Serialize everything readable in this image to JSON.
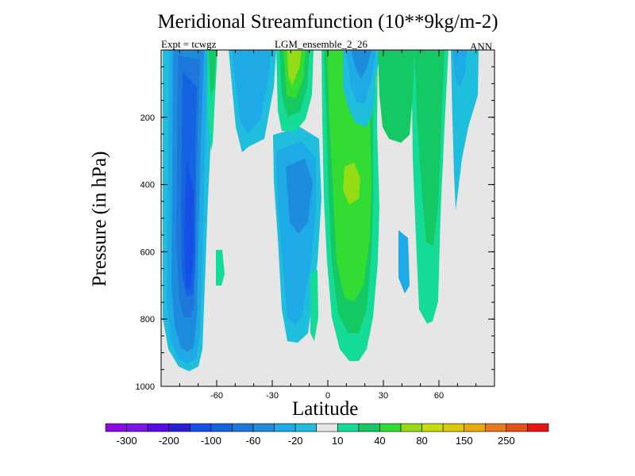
{
  "chart_data": {
    "type": "contour",
    "title": "Meridional Streamfunction (10**9kg/m-2)",
    "left_label": "Expt = tcwgz",
    "center_label": "LGM_ensemble_2_26",
    "right_label": "ANN",
    "xlabel": "Latitude",
    "ylabel": "Pressure (in hPa)",
    "xlim": [
      -90,
      90
    ],
    "ylim": [
      1000,
      0
    ],
    "x_ticks": [
      -60,
      -30,
      0,
      30,
      60
    ],
    "x_tick_labels": [
      "-60",
      "-30",
      "0",
      "30",
      "60"
    ],
    "y_ticks": [
      200,
      400,
      600,
      800,
      1000
    ],
    "y_tick_labels": [
      "200",
      "400",
      "600",
      "800",
      "1000"
    ],
    "background_color": "#e6e6e6",
    "colorbar": {
      "levels": [
        -300,
        -250,
        -200,
        -150,
        -100,
        -80,
        -60,
        -40,
        -20,
        -10,
        10,
        20,
        40,
        60,
        80,
        100,
        150,
        200,
        250,
        300
      ],
      "labels": [
        "-300",
        "-200",
        "-100",
        "-60",
        "-20",
        "10",
        "40",
        "80",
        "150",
        "250"
      ],
      "colors": [
        "#8a0ae6",
        "#7b14e6",
        "#5a0ae6",
        "#2d1ed6",
        "#1450e6",
        "#1464e0",
        "#1e78dc",
        "#1e8cdc",
        "#1eaae6",
        "#1ebedc",
        "#e6e6e6",
        "#14dc96",
        "#14c864",
        "#32dc32",
        "#96dc14",
        "#c8dc0a",
        "#dcc80a",
        "#e6aa0a",
        "#e6781e",
        "#e65014",
        "#e61414"
      ]
    },
    "fields": [
      {
        "name": "SH Hadley/Ferrel cell",
        "lat_range": [
          -85,
          -58
        ],
        "p_range": [
          30,
          960
        ],
        "min_value": -100,
        "sign": "negative"
      },
      {
        "name": "upper trop cell",
        "lat_range": [
          -50,
          -28
        ],
        "p_range": [
          30,
          310
        ],
        "min_value": -20,
        "sign": "negative"
      },
      {
        "name": "SH tropical cell",
        "lat_range": [
          -26,
          -6
        ],
        "p_range": [
          160,
          880
        ],
        "min_value": -40,
        "sign": "negative"
      },
      {
        "name": "stratospheric tropical cell",
        "lat_range": [
          -22,
          -10
        ],
        "p_range": [
          30,
          160
        ],
        "max_value": 60,
        "sign": "positive"
      },
      {
        "name": "NH Hadley cell",
        "lat_range": [
          2,
          28
        ],
        "p_range": [
          30,
          920
        ],
        "max_value": 60,
        "sign": "positive"
      },
      {
        "name": "NH subtropical tongue",
        "lat_range": [
          8,
          14
        ],
        "p_range": [
          30,
          140
        ],
        "min_value": -40,
        "sign": "negative"
      },
      {
        "name": "NH midlatitude positive",
        "lat_range": [
          42,
          64
        ],
        "p_range": [
          30,
          840
        ],
        "max_value": 40,
        "sign": "positive"
      },
      {
        "name": "NH polar negative",
        "lat_range": [
          64,
          78
        ],
        "p_range": [
          30,
          470
        ],
        "min_value": -20,
        "sign": "negative"
      },
      {
        "name": "NH small negative",
        "lat_range": [
          37,
          43
        ],
        "p_range": [
          520,
          740
        ],
        "min_value": -20,
        "sign": "negative"
      },
      {
        "name": "SH small positive",
        "lat_range": [
          -57,
          -54
        ],
        "p_range": [
          600,
          720
        ],
        "max_value": 10,
        "sign": "positive"
      }
    ]
  }
}
